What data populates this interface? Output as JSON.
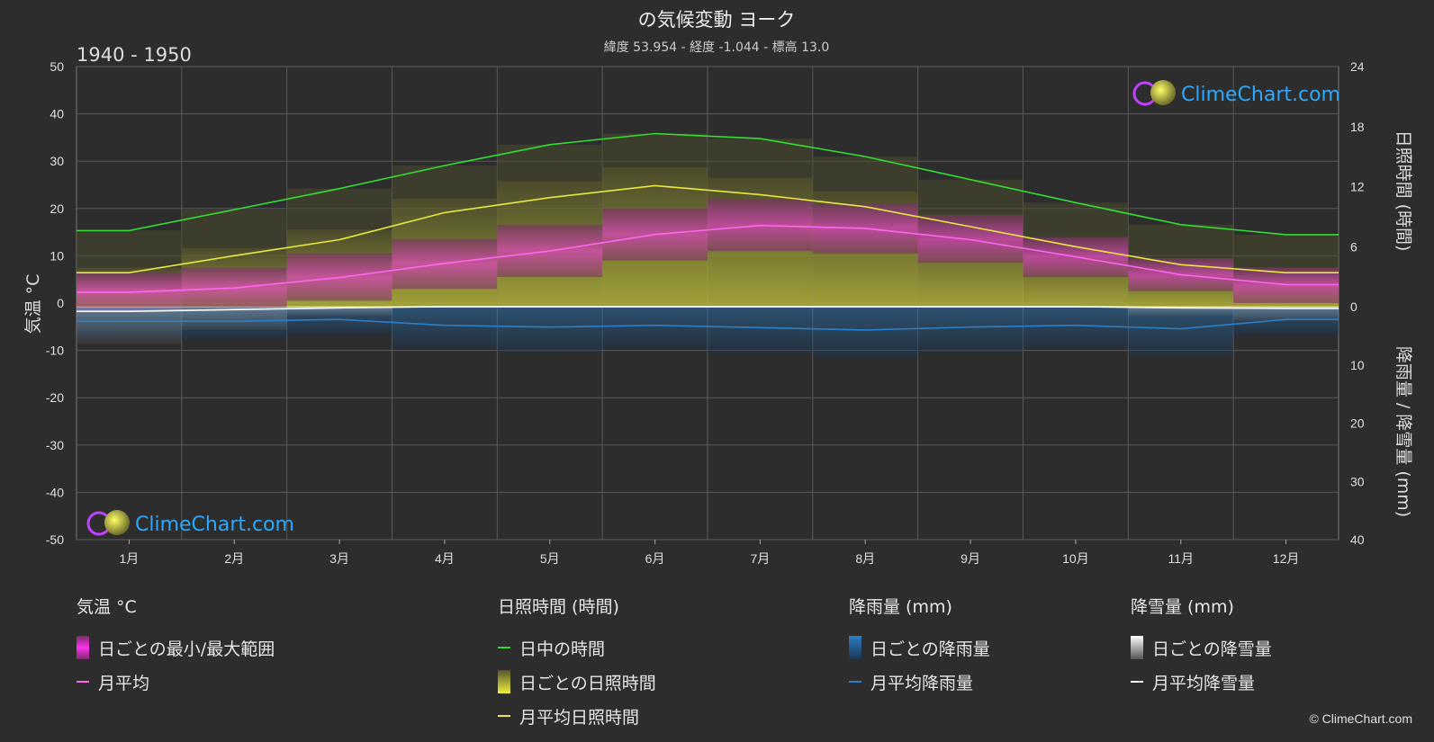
{
  "header": {
    "title": "の気候変動 ヨーク",
    "subtitle": "緯度 53.954 - 経度 -1.044 - 標高 13.0",
    "period": "1940 - 1950"
  },
  "axes": {
    "left_title": "気温 °C",
    "right_top_title": "日照時間 (時間)",
    "right_bottom_title": "降雨量 / 降雪量 (mm)"
  },
  "watermark": "ClimeChart.com",
  "copyright": "© ClimeChart.com",
  "colors": {
    "background": "#2d2d2d",
    "daylight": "#33dd33",
    "sunshine": "#e8e840",
    "temperature": "#ff66ee",
    "temp_band": "#d63fb8",
    "rain": "#2b7fc8",
    "snow": "#ffffff",
    "logo_text": "#2aa8ff"
  },
  "legend": [
    {
      "title": "気温 °C",
      "items": [
        {
          "label": "日ごとの最小/最大範囲",
          "swatch": "temp-band"
        },
        {
          "label": "月平均",
          "swatch": "temp-line"
        }
      ]
    },
    {
      "title": "日照時間 (時間)",
      "items": [
        {
          "label": "日中の時間",
          "swatch": "daylight-line"
        },
        {
          "label": "日ごとの日照時間",
          "swatch": "sunshine-band"
        },
        {
          "label": "月平均日照時間",
          "swatch": "sunshine-line"
        }
      ]
    },
    {
      "title": "降雨量 (mm)",
      "items": [
        {
          "label": "日ごとの降雨量",
          "swatch": "rain-band"
        },
        {
          "label": "月平均降雨量",
          "swatch": "rain-line"
        }
      ]
    },
    {
      "title": "降雪量 (mm)",
      "items": [
        {
          "label": "日ごとの降雪量",
          "swatch": "snow-band"
        },
        {
          "label": "月平均降雪量",
          "swatch": "snow-line"
        }
      ]
    }
  ],
  "chart_data": {
    "type": "line",
    "title": "の気候変動 ヨーク",
    "categories": [
      "1月",
      "2月",
      "3月",
      "4月",
      "5月",
      "6月",
      "7月",
      "8月",
      "9月",
      "10月",
      "11月",
      "12月"
    ],
    "axes": {
      "temperature": {
        "label": "気温 °C",
        "range": [
          -50,
          50
        ],
        "ticks": [
          50,
          40,
          30,
          20,
          10,
          0,
          -10,
          -20,
          -30,
          -40,
          -50
        ]
      },
      "sunshine_hours": {
        "label": "日照時間 (時間)",
        "range": [
          0,
          24
        ],
        "ticks": [
          24,
          18,
          12,
          6,
          0
        ]
      },
      "precipitation_mm": {
        "label": "降雨量 / 降雪量 (mm)",
        "range": [
          0,
          40
        ],
        "ticks": [
          0,
          10,
          20,
          30,
          40
        ]
      }
    },
    "grid": true,
    "series": [
      {
        "name": "日中の時間",
        "axis": "sunshine_hours",
        "values": [
          7.6,
          9.7,
          11.8,
          14.1,
          16.2,
          17.3,
          16.8,
          15.0,
          12.7,
          10.4,
          8.2,
          7.2
        ]
      },
      {
        "name": "月平均日照時間",
        "axis": "sunshine_hours",
        "values": [
          3.4,
          5.1,
          6.7,
          9.4,
          10.9,
          12.1,
          11.2,
          10.0,
          8.0,
          6.0,
          4.2,
          3.4
        ]
      },
      {
        "name": "月平均",
        "axis": "temperature",
        "values": [
          2.3,
          3.2,
          5.4,
          8.4,
          11.0,
          14.5,
          16.4,
          15.8,
          13.4,
          9.8,
          6.0,
          3.9
        ]
      },
      {
        "name": "月平均降雨量",
        "axis": "precipitation_mm",
        "values": [
          2.5,
          2.5,
          2.2,
          3.2,
          3.5,
          3.2,
          3.6,
          4.0,
          3.5,
          3.2,
          3.8,
          2.2
        ]
      },
      {
        "name": "月平均降雪量",
        "axis": "precipitation_mm",
        "values": [
          0.8,
          0.5,
          0.2,
          0.0,
          0.0,
          0.0,
          0.0,
          0.0,
          0.0,
          0.0,
          0.2,
          0.3
        ]
      }
    ],
    "daily_temperature_range": {
      "min": [
        -1.5,
        -1.0,
        0.5,
        3.0,
        5.5,
        9.0,
        11.0,
        10.5,
        8.5,
        5.5,
        2.5,
        0.0
      ],
      "max": [
        6.5,
        7.5,
        10.5,
        13.5,
        16.5,
        20.0,
        22.0,
        21.0,
        18.5,
        14.0,
        9.5,
        7.5
      ]
    }
  }
}
